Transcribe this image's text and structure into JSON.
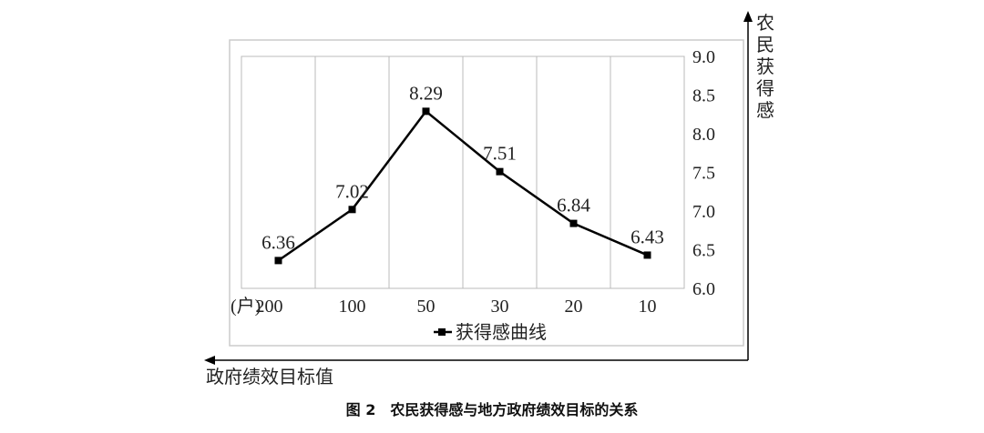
{
  "chart_data": {
    "type": "line",
    "categories": [
      "200",
      "100",
      "50",
      "30",
      "20",
      "10"
    ],
    "x_unit": "(户)",
    "series": [
      {
        "name": "获得感曲线",
        "values": [
          6.36,
          7.02,
          8.29,
          7.51,
          6.84,
          6.43
        ]
      }
    ],
    "data_labels": [
      "6.36",
      "7.02",
      "8.29",
      "7.51",
      "6.84",
      "6.43"
    ],
    "yticks": [
      "6.0",
      "6.5",
      "7.0",
      "7.5",
      "8.0",
      "8.5",
      "9.0"
    ],
    "ylim": [
      6.0,
      9.0
    ],
    "ylabel": "农民获得感",
    "xlabel": "政府绩效目标值",
    "legend": "bottom",
    "grid": "vertical",
    "colors": {
      "line": "#000000",
      "grid": "#bbbbbb",
      "frame": "#cccccc"
    }
  },
  "caption": "图 2　农民获得感与地方政府绩效目标的关系"
}
